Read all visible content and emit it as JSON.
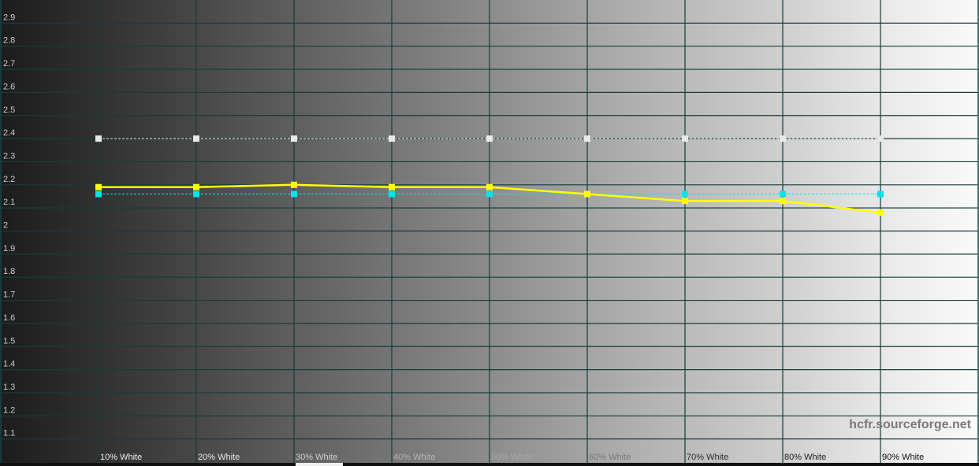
{
  "chart_data": {
    "type": "line",
    "title": "",
    "xlabel": "",
    "ylabel": "",
    "categories": [
      "10% White",
      "20% White",
      "30% White",
      "40% White",
      "50% White",
      "60% White",
      "70% White",
      "80% White",
      "90% White"
    ],
    "y_ticks": [
      "2.9",
      "2.8",
      "2.7",
      "2.6",
      "2.5",
      "2.4",
      "2.3",
      "2.2",
      "2.1",
      "2",
      "1.9",
      "1.8",
      "1.7",
      "1.6",
      "1.5",
      "1.4",
      "1.3",
      "1.2",
      "1.1"
    ],
    "ylim": [
      1.0,
      3.0
    ],
    "grid": true,
    "series": [
      {
        "values": [
          2.4,
          2.4,
          2.4,
          2.4,
          2.4,
          2.4,
          2.4,
          2.4,
          2.4
        ],
        "color": "#e8e8e8",
        "style": "dashed"
      },
      {
        "values": [
          2.16,
          2.16,
          2.16,
          2.16,
          2.16,
          2.16,
          2.16,
          2.16,
          2.16
        ],
        "color": "#00e5ee",
        "style": "dashed"
      },
      {
        "values": [
          2.19,
          2.19,
          2.2,
          2.19,
          2.19,
          2.16,
          2.13,
          2.13,
          2.08
        ],
        "color": "#ffff00",
        "style": "solid"
      }
    ]
  },
  "watermark": "hcfr.sourceforge.net",
  "colors": {
    "grid": "#163c3c",
    "background_start": "#1c1c1c",
    "background_end": "#fafafa"
  }
}
